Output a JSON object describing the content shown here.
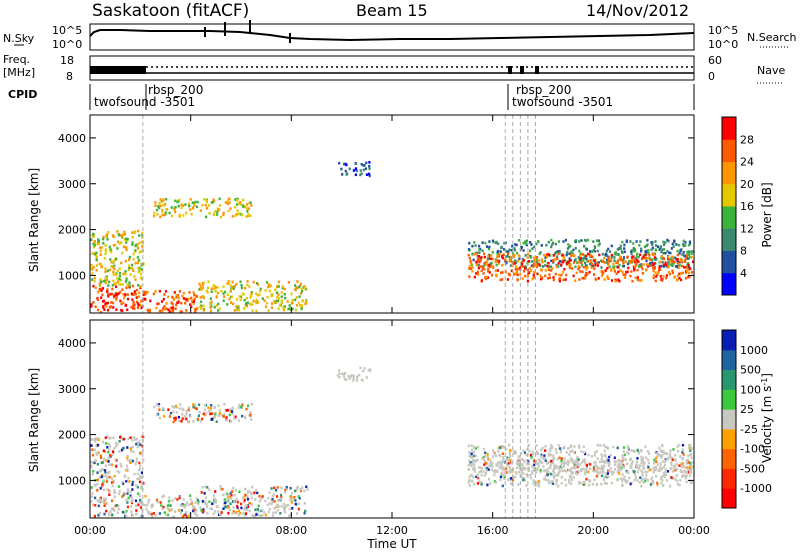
{
  "header": {
    "station": "Saskatoon (fitACF)",
    "beam": "Beam 15",
    "date": "14/Nov/2012"
  },
  "top_panels": {
    "nsky_label": "N.Sky",
    "nsky_ticks": [
      "10^5",
      "10^0"
    ],
    "nsearch_label": "N.Search",
    "nsearch_ticks": [
      "10^5",
      "10^0"
    ],
    "freq_label_line1": "Freq.",
    "freq_label_line2": "[MHz]",
    "freq_ticks": [
      "18",
      "8"
    ],
    "nave_label": "Nave",
    "nave_ticks": [
      "60",
      "0"
    ],
    "cpid_label": "CPID",
    "cpid_names": [
      "rbsp_200",
      "twofsound -3501",
      "rbsp_200",
      "twofsound -3501"
    ]
  },
  "x_axis": {
    "label": "Time UT",
    "ticks": [
      "00:00",
      "04:00",
      "08:00",
      "12:00",
      "16:00",
      "20:00",
      "00:00"
    ]
  },
  "colors": {
    "power": [
      "#0000ff",
      "#2050a0",
      "#3c8a6e",
      "#3cb43c",
      "#e6c800",
      "#ff9600",
      "#ff5a00",
      "#ff0000"
    ],
    "velocity": [
      "#0a1eb4",
      "#1e64a0",
      "#28966e",
      "#3cc83c",
      "#c8c8c0",
      "#ffa000",
      "#ff6400",
      "#ff2800",
      "#ff0000"
    ],
    "ground_scatter": "#c8c8c0"
  },
  "chart_data": [
    {
      "type": "heatmap",
      "title": "Power",
      "ylabel": "Slant Range [km]",
      "xlabel": "",
      "x_range_hours": [
        0,
        24
      ],
      "ylim": [
        180,
        4500
      ],
      "yticks": [
        "1000",
        "2000",
        "3000",
        "4000"
      ],
      "colorbar": {
        "label": "Power [dB]",
        "ticks": [
          "4",
          "8",
          "12",
          "16",
          "20",
          "24",
          "28"
        ],
        "range": [
          0,
          32
        ]
      },
      "scatter_regions": [
        {
          "t0": 0.0,
          "t1": 2.1,
          "r0": 200,
          "r1": 800,
          "level": 28
        },
        {
          "t0": 0.0,
          "t1": 2.1,
          "r0": 800,
          "r1": 2000,
          "level": 18
        },
        {
          "t0": 2.1,
          "t1": 4.3,
          "r0": 200,
          "r1": 700,
          "level": 26
        },
        {
          "t0": 4.3,
          "t1": 8.6,
          "r0": 250,
          "r1": 900,
          "level": 18
        },
        {
          "t0": 2.5,
          "t1": 6.4,
          "r0": 2300,
          "r1": 2700,
          "level": 18
        },
        {
          "t0": 9.8,
          "t1": 11.1,
          "r0": 3200,
          "r1": 3500,
          "level": 6
        },
        {
          "t0": 15.0,
          "t1": 24.0,
          "r0": 1200,
          "r1": 1800,
          "level": 10
        },
        {
          "t0": 15.0,
          "t1": 24.0,
          "r0": 900,
          "r1": 1500,
          "level": 26
        }
      ]
    },
    {
      "type": "heatmap",
      "title": "Velocity",
      "ylabel": "Slant Range [km]",
      "xlabel": "Time UT",
      "x_range_hours": [
        0,
        24
      ],
      "ylim": [
        180,
        4500
      ],
      "yticks": [
        "1000",
        "2000",
        "3000",
        "4000"
      ],
      "colorbar": {
        "label": "Velocity [m s^-1]",
        "ticks": [
          "1000",
          "500",
          "100",
          "25",
          "-25",
          "-100",
          "-500",
          "-1000"
        ]
      }
    }
  ]
}
